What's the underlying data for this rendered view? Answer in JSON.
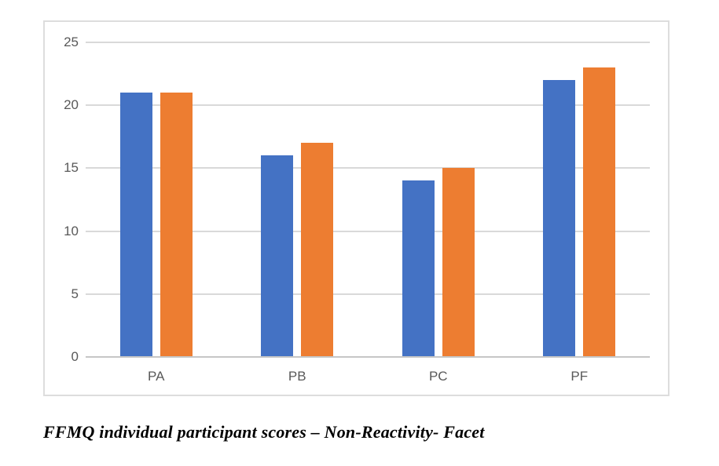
{
  "figure": {
    "caption": "FFMQ individual participant scores – Non-Reactivity- Facet"
  },
  "chart_data": {
    "type": "bar",
    "title": "",
    "categories": [
      "PA",
      "PB",
      "PC",
      "PF"
    ],
    "series": [
      {
        "name": "series-1",
        "color": "#4472C4",
        "values": [
          21,
          16,
          14,
          22
        ]
      },
      {
        "name": "series-2",
        "color": "#ED7D31",
        "values": [
          21,
          17,
          15,
          23
        ]
      }
    ],
    "xlabel": "",
    "ylabel": "",
    "ylim": [
      0,
      25
    ],
    "yticks": [
      0,
      5,
      10,
      15,
      20,
      25
    ],
    "grid": true,
    "legend_position": "none",
    "colors": {
      "gridline": "#D9D9D9",
      "axis_line": "#C6C6C6",
      "tick_label": "#595959",
      "frame_border": "#DDDDDD",
      "background": "#FFFFFF"
    }
  }
}
